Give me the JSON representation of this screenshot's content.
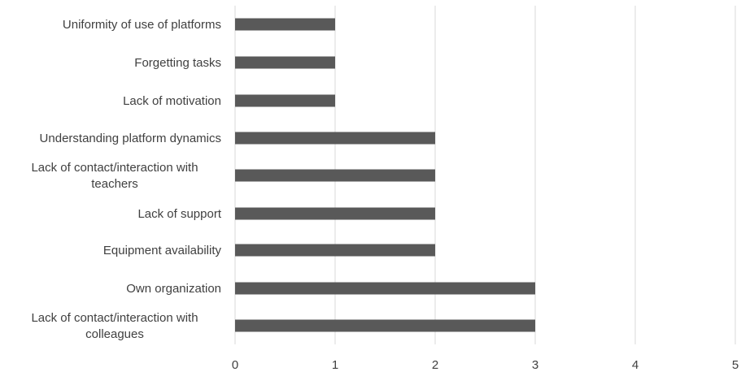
{
  "chart_data": {
    "type": "bar",
    "orientation": "horizontal",
    "categories": [
      "Uniformity of use of platforms",
      "Forgetting tasks",
      "Lack of motivation",
      "Understanding platform dynamics",
      "Lack of contact/interaction with teachers",
      "Lack of support",
      "Equipment availability",
      "Own organization",
      "Lack of contact/interaction with colleagues"
    ],
    "values": [
      1,
      1,
      1,
      2,
      2,
      2,
      2,
      3,
      3
    ],
    "xlim": [
      0,
      5
    ],
    "x_ticks": [
      "0",
      "1",
      "2",
      "3",
      "4",
      "5"
    ],
    "grid": "vertical",
    "title": "",
    "xlabel": "",
    "ylabel": "",
    "colors": {
      "bar": "#595959",
      "grid": "#d9d9d9",
      "text": "#404040"
    }
  }
}
